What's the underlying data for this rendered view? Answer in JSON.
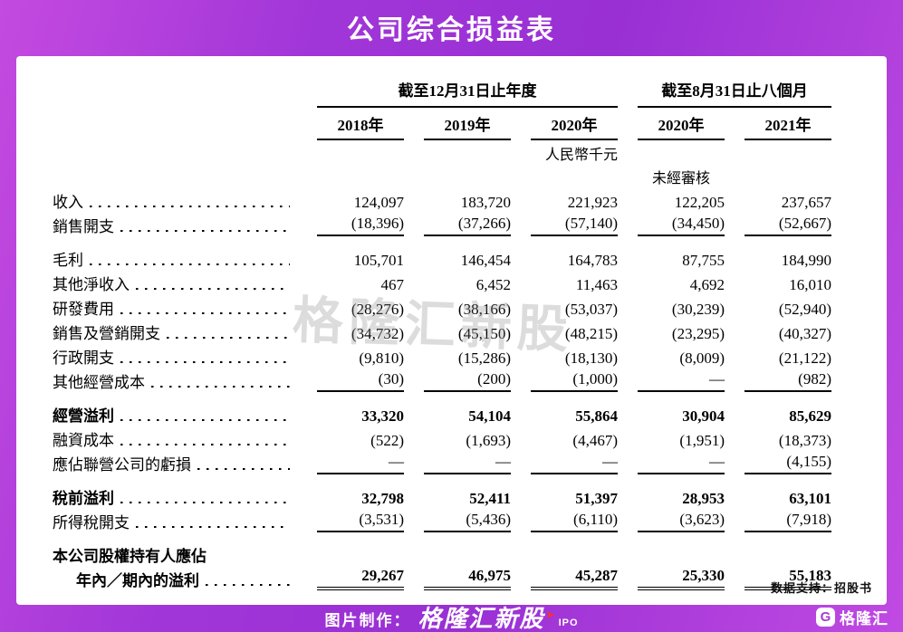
{
  "title": "公司综合损益表",
  "table": {
    "group_headers": [
      "截至12月31日止年度",
      "截至8月31日止八個月"
    ],
    "years": [
      "2018年",
      "2019年",
      "2020年",
      "2020年",
      "2021年"
    ],
    "unit_note": "人民幣千元",
    "unaudited_note": "未經審核",
    "rows": [
      {
        "label": "收入",
        "values": [
          "124,097",
          "183,720",
          "221,923",
          "122,205",
          "237,657"
        ]
      },
      {
        "label": "銷售開支",
        "values": [
          "(18,396)",
          "(37,266)",
          "(57,140)",
          "(34,450)",
          "(52,667)"
        ]
      },
      {
        "label": "毛利",
        "values": [
          "105,701",
          "146,454",
          "164,783",
          "87,755",
          "184,990"
        ]
      },
      {
        "label": "其他淨收入",
        "values": [
          "467",
          "6,452",
          "11,463",
          "4,692",
          "16,010"
        ]
      },
      {
        "label": "研發費用",
        "values": [
          "(28,276)",
          "(38,166)",
          "(53,037)",
          "(30,239)",
          "(52,940)"
        ]
      },
      {
        "label": "銷售及營銷開支",
        "values": [
          "(34,732)",
          "(45,150)",
          "(48,215)",
          "(23,295)",
          "(40,327)"
        ]
      },
      {
        "label": "行政開支",
        "values": [
          "(9,810)",
          "(15,286)",
          "(18,130)",
          "(8,009)",
          "(21,122)"
        ]
      },
      {
        "label": "其他經營成本",
        "values": [
          "(30)",
          "(200)",
          "(1,000)",
          "—",
          "(982)"
        ]
      },
      {
        "label": "經營溢利",
        "values": [
          "33,320",
          "54,104",
          "55,864",
          "30,904",
          "85,629"
        ]
      },
      {
        "label": "融資成本",
        "values": [
          "(522)",
          "(1,693)",
          "(4,467)",
          "(1,951)",
          "(18,373)"
        ]
      },
      {
        "label": "應佔聯營公司的虧損",
        "values": [
          "—",
          "—",
          "—",
          "—",
          "(4,155)"
        ]
      },
      {
        "label": "稅前溢利",
        "values": [
          "32,798",
          "52,411",
          "51,397",
          "28,953",
          "63,101"
        ]
      },
      {
        "label": "所得稅開支",
        "values": [
          "(3,531)",
          "(5,436)",
          "(6,110)",
          "(3,623)",
          "(7,918)"
        ]
      },
      {
        "label": "本公司股權持有人應佔",
        "values": []
      },
      {
        "label": "年內／期內的溢利",
        "values": [
          "29,267",
          "46,975",
          "45,287",
          "25,330",
          "55,183"
        ]
      }
    ]
  },
  "watermark": "格隆汇新股",
  "source_note": "数据支持：招股书",
  "footer": {
    "made_by": "图片制作：",
    "brand": "格隆汇新股",
    "ipo": "IPO",
    "logo_letter": "G",
    "logo_text": "格隆汇"
  }
}
